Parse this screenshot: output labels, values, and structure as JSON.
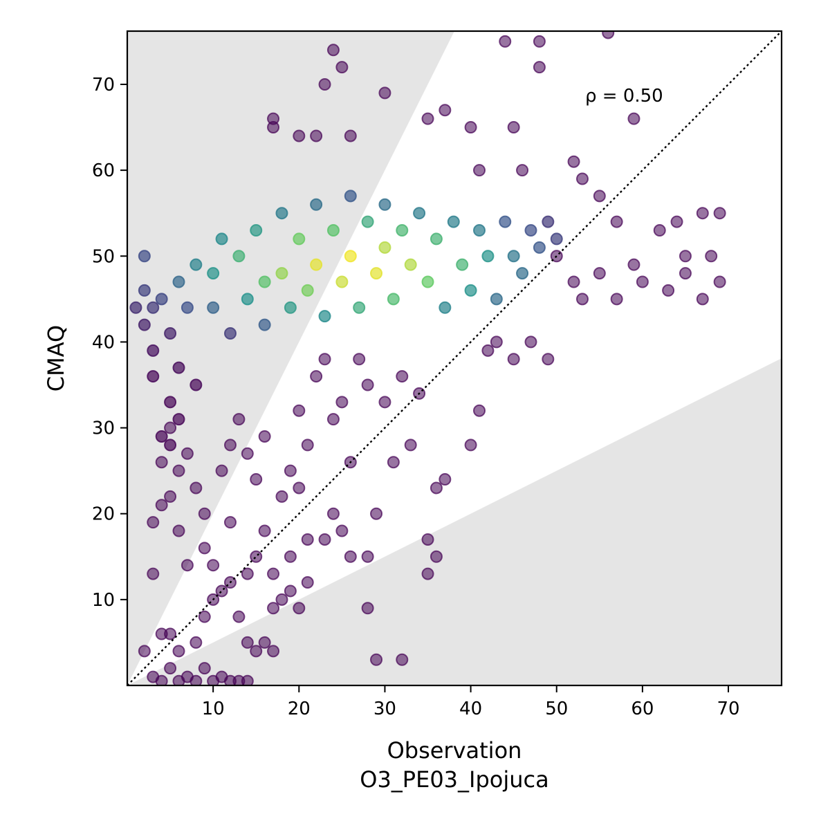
{
  "chart_data": {
    "type": "scatter",
    "title": "",
    "xlabel": "Observation",
    "xlabel_sub": "O3_PE03_Ipojuca",
    "ylabel": "CMAQ",
    "xlim": [
      0,
      76.2
    ],
    "ylim": [
      0,
      76.2
    ],
    "xticks": [
      10,
      20,
      30,
      40,
      50,
      60,
      70
    ],
    "yticks": [
      10,
      20,
      30,
      40,
      50,
      60,
      70
    ],
    "annotation": "ρ = 0.50",
    "grid": false,
    "reference_line": {
      "type": "1:1",
      "style": "dotted",
      "color": "#000000"
    },
    "shaded_region": {
      "description": "outside factor-of-2 band",
      "color": "#e5e5e5"
    },
    "colormap": [
      "#440154",
      "#3b528b",
      "#21918c",
      "#5ec962",
      "#fde725"
    ],
    "point_color": "#440154",
    "point_alpha": 0.55,
    "cluster_points": [
      [
        1,
        44
      ],
      [
        2,
        50
      ],
      [
        2,
        42
      ],
      [
        2,
        46
      ],
      [
        3,
        44
      ],
      [
        3,
        39
      ],
      [
        3,
        36
      ],
      [
        4,
        45
      ],
      [
        4,
        29
      ],
      [
        5,
        41
      ],
      [
        5,
        33
      ],
      [
        5,
        28
      ],
      [
        6,
        47
      ],
      [
        6,
        37
      ],
      [
        6,
        31
      ],
      [
        7,
        44
      ],
      [
        8,
        49
      ],
      [
        8,
        35
      ],
      [
        10,
        48
      ],
      [
        10,
        44
      ],
      [
        11,
        52
      ],
      [
        12,
        41
      ],
      [
        13,
        50
      ],
      [
        14,
        45
      ],
      [
        15,
        53
      ],
      [
        16,
        47
      ],
      [
        16,
        42
      ],
      [
        18,
        55
      ],
      [
        18,
        48
      ],
      [
        19,
        44
      ],
      [
        20,
        52
      ],
      [
        21,
        46
      ],
      [
        22,
        56
      ],
      [
        22,
        49
      ],
      [
        23,
        43
      ],
      [
        24,
        53
      ],
      [
        25,
        47
      ],
      [
        26,
        57
      ],
      [
        26,
        50
      ],
      [
        27,
        44
      ],
      [
        28,
        54
      ],
      [
        29,
        48
      ],
      [
        30,
        56
      ],
      [
        30,
        51
      ],
      [
        31,
        45
      ],
      [
        32,
        53
      ],
      [
        33,
        49
      ],
      [
        34,
        55
      ],
      [
        35,
        47
      ],
      [
        36,
        52
      ],
      [
        37,
        44
      ],
      [
        38,
        54
      ],
      [
        39,
        49
      ],
      [
        40,
        46
      ],
      [
        41,
        53
      ],
      [
        42,
        50
      ],
      [
        43,
        45
      ],
      [
        44,
        54
      ],
      [
        45,
        50
      ],
      [
        46,
        48
      ],
      [
        47,
        53
      ],
      [
        48,
        51
      ],
      [
        49,
        54
      ],
      [
        50,
        52
      ]
    ],
    "scatter_points": [
      [
        24,
        74
      ],
      [
        25,
        72
      ],
      [
        23,
        70
      ],
      [
        30,
        69
      ],
      [
        44,
        75
      ],
      [
        48,
        75
      ],
      [
        48,
        72
      ],
      [
        56,
        76
      ],
      [
        59,
        66
      ],
      [
        45,
        65
      ],
      [
        37,
        67
      ],
      [
        40,
        65
      ],
      [
        35,
        66
      ],
      [
        17,
        66
      ],
      [
        17,
        65
      ],
      [
        20,
        64
      ],
      [
        22,
        64
      ],
      [
        26,
        64
      ],
      [
        41,
        60
      ],
      [
        46,
        60
      ],
      [
        52,
        61
      ],
      [
        53,
        59
      ],
      [
        55,
        57
      ],
      [
        57,
        54
      ],
      [
        62,
        53
      ],
      [
        64,
        54
      ],
      [
        65,
        50
      ],
      [
        67,
        55
      ],
      [
        69,
        55
      ],
      [
        68,
        50
      ],
      [
        69,
        47
      ],
      [
        67,
        45
      ],
      [
        65,
        48
      ],
      [
        63,
        46
      ],
      [
        60,
        47
      ],
      [
        59,
        49
      ],
      [
        57,
        45
      ],
      [
        55,
        48
      ],
      [
        53,
        45
      ],
      [
        52,
        47
      ],
      [
        50,
        50
      ],
      [
        47,
        40
      ],
      [
        49,
        38
      ],
      [
        45,
        38
      ],
      [
        43,
        40
      ],
      [
        42,
        39
      ],
      [
        41,
        32
      ],
      [
        40,
        28
      ],
      [
        37,
        24
      ],
      [
        36,
        23
      ],
      [
        35,
        17
      ],
      [
        36,
        15
      ],
      [
        35,
        13
      ],
      [
        33,
        28
      ],
      [
        31,
        26
      ],
      [
        29,
        20
      ],
      [
        29,
        3
      ],
      [
        32,
        3
      ],
      [
        28,
        9
      ],
      [
        28,
        15
      ],
      [
        26,
        15
      ],
      [
        25,
        18
      ],
      [
        24,
        20
      ],
      [
        23,
        17
      ],
      [
        21,
        17
      ],
      [
        20,
        23
      ],
      [
        19,
        15
      ],
      [
        19,
        11
      ],
      [
        18,
        10
      ],
      [
        17,
        13
      ],
      [
        17,
        9
      ],
      [
        16,
        5
      ],
      [
        15,
        4
      ],
      [
        14,
        5
      ],
      [
        14,
        0.5
      ],
      [
        13,
        0.5
      ],
      [
        12,
        0.5
      ],
      [
        11,
        1
      ],
      [
        10,
        0.5
      ],
      [
        9,
        2
      ],
      [
        8,
        0.5
      ],
      [
        7,
        1
      ],
      [
        6,
        0.5
      ],
      [
        5,
        2
      ],
      [
        4,
        0.5
      ],
      [
        3,
        1
      ],
      [
        2,
        4
      ],
      [
        4,
        6
      ],
      [
        5,
        6
      ],
      [
        6,
        4
      ],
      [
        8,
        5
      ],
      [
        9,
        8
      ],
      [
        10,
        10
      ],
      [
        11,
        11
      ],
      [
        12,
        12
      ],
      [
        13,
        8
      ],
      [
        14,
        13
      ],
      [
        15,
        15
      ],
      [
        16,
        18
      ],
      [
        12,
        19
      ],
      [
        10,
        14
      ],
      [
        9,
        16
      ],
      [
        7,
        14
      ],
      [
        6,
        18
      ],
      [
        5,
        22
      ],
      [
        4,
        21
      ],
      [
        3,
        19
      ],
      [
        3,
        13
      ],
      [
        4,
        26
      ],
      [
        5,
        30
      ],
      [
        6,
        25
      ],
      [
        7,
        27
      ],
      [
        8,
        23
      ],
      [
        9,
        20
      ],
      [
        11,
        25
      ],
      [
        12,
        28
      ],
      [
        13,
        31
      ],
      [
        14,
        27
      ],
      [
        15,
        24
      ],
      [
        16,
        29
      ],
      [
        18,
        22
      ],
      [
        19,
        25
      ],
      [
        20,
        32
      ],
      [
        21,
        28
      ],
      [
        22,
        36
      ],
      [
        23,
        38
      ],
      [
        24,
        31
      ],
      [
        25,
        33
      ],
      [
        26,
        26
      ],
      [
        27,
        38
      ],
      [
        28,
        35
      ],
      [
        30,
        33
      ],
      [
        32,
        36
      ],
      [
        34,
        34
      ],
      [
        21,
        12
      ],
      [
        20,
        9
      ],
      [
        17,
        4
      ]
    ]
  }
}
